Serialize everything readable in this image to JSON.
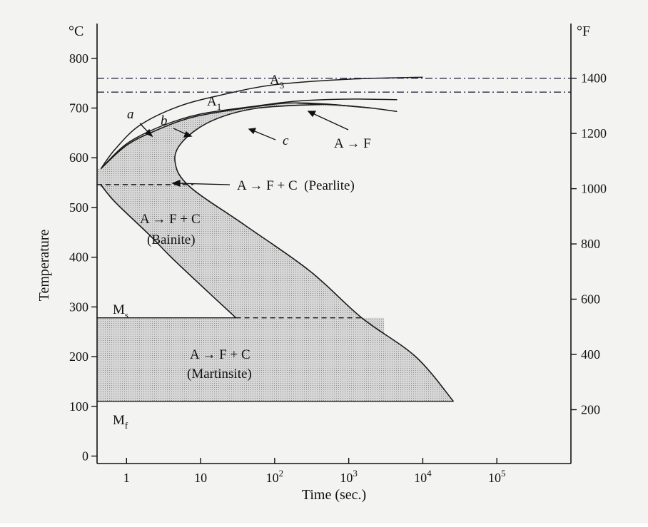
{
  "chart_data": {
    "type": "area",
    "left_unit": "°C",
    "right_unit": "°F",
    "xlabel": "Time (sec.)",
    "ylabel": "Temperature",
    "x_scale": "log",
    "xlim": [
      0.4,
      1000000
    ],
    "ylim": [
      -15,
      870
    ],
    "x_ticks": [
      {
        "value": 1,
        "base": "1",
        "exp": ""
      },
      {
        "value": 10,
        "base": "10",
        "exp": ""
      },
      {
        "value": 100,
        "base": "10",
        "exp": "2"
      },
      {
        "value": 1000,
        "base": "10",
        "exp": "3"
      },
      {
        "value": 10000,
        "base": "10",
        "exp": "4"
      },
      {
        "value": 100000,
        "base": "10",
        "exp": "5"
      }
    ],
    "y_ticks_left": [
      0,
      100,
      200,
      300,
      400,
      500,
      600,
      700,
      800
    ],
    "y_ticks_right": [
      {
        "label": "200",
        "celsius": 93.3
      },
      {
        "label": "400",
        "celsius": 204.4
      },
      {
        "label": "600",
        "celsius": 315.6
      },
      {
        "label": "800",
        "celsius": 426.7
      },
      {
        "label": "1000",
        "celsius": 537.8
      },
      {
        "label": "1200",
        "celsius": 648.9
      },
      {
        "label": "1400",
        "celsius": 760
      }
    ],
    "reference_lines": [
      {
        "name": "A",
        "sub": "3",
        "y": 760,
        "style": "dash-dot"
      },
      {
        "name": "A",
        "sub": "1",
        "y": 732,
        "style": "dash-dot"
      },
      {
        "name": "M",
        "sub": "s",
        "y": 278,
        "style": "solid"
      },
      {
        "name": "M",
        "sub": "f",
        "y": 110,
        "style": "solid"
      },
      {
        "name": "bainite-boundary",
        "y": 546,
        "style": "dashed"
      }
    ],
    "curves": {
      "a": [
        [
          0.45,
          578
        ],
        [
          0.7,
          617
        ],
        [
          1.5,
          665
        ],
        [
          5,
          703
        ],
        [
          20,
          727
        ],
        [
          100,
          747
        ],
        [
          1000,
          758
        ],
        [
          10000,
          762
        ]
      ],
      "b": [
        [
          0.45,
          578
        ],
        [
          1,
          628
        ],
        [
          3,
          664
        ],
        [
          10,
          688
        ],
        [
          50,
          703
        ],
        [
          200,
          714
        ],
        [
          1000,
          718
        ],
        [
          4500,
          717
        ]
      ],
      "c": [
        [
          200,
          710
        ],
        [
          700,
          706
        ],
        [
          2000,
          700
        ],
        [
          4500,
          693
        ]
      ],
      "start_nose": [
        [
          0.45,
          578
        ],
        [
          1,
          625
        ],
        [
          2.5,
          655
        ],
        [
          8,
          682
        ],
        [
          40,
          700
        ],
        [
          150,
          710
        ],
        [
          500,
          708
        ],
        [
          2000,
          700
        ]
      ],
      "finish_nose": [
        [
          500,
          708
        ],
        [
          60,
          700
        ],
        [
          15,
          676
        ],
        [
          6,
          636
        ],
        [
          4.5,
          594
        ],
        [
          7,
          543
        ],
        [
          40,
          464
        ],
        [
          300,
          372
        ],
        [
          1500,
          278
        ],
        [
          8000,
          200
        ],
        [
          26000,
          110
        ]
      ],
      "bainite_lower": [
        [
          0.45,
          546
        ],
        [
          0.7,
          511
        ],
        [
          2,
          446
        ],
        [
          4,
          400
        ],
        [
          10,
          344
        ],
        [
          30,
          278
        ]
      ]
    },
    "annotations": [
      {
        "id": "label-a",
        "text": "a"
      },
      {
        "id": "label-b",
        "text": "b"
      },
      {
        "id": "label-c",
        "text": "c"
      },
      {
        "id": "label-af",
        "text": "A → F"
      },
      {
        "id": "label-pearlite",
        "text": "A → F + C  (Pearlite)"
      },
      {
        "id": "label-bainite-1",
        "text": "A → F + C"
      },
      {
        "id": "label-bainite-2",
        "text": "(Bainite)"
      },
      {
        "id": "label-martensite-1",
        "text": "A → F + C"
      },
      {
        "id": "label-martensite-2",
        "text": "(Martinsite)"
      }
    ],
    "colors": {
      "shade": "#cfcfcf",
      "line": "#1a1a1a",
      "refline": "#2a2a44"
    }
  }
}
